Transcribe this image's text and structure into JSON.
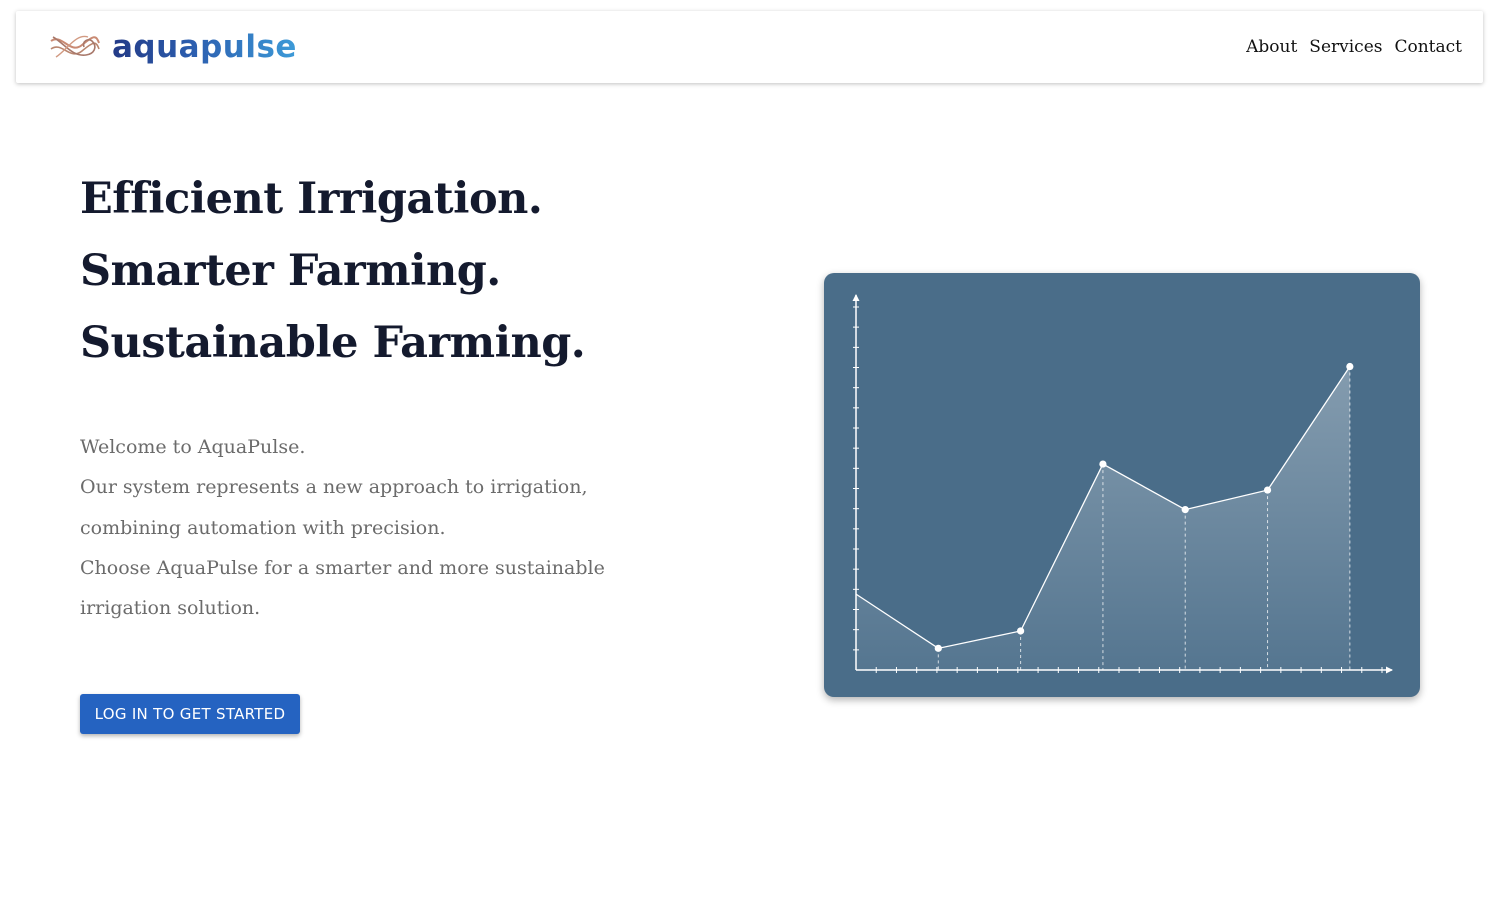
{
  "brand": {
    "name": "aquapulse",
    "icon": "wave-logo-icon",
    "gradient_start": "#233a86",
    "gradient_end": "#3d9bd8",
    "icon_color": "#c98a73"
  },
  "nav": {
    "items": [
      {
        "label": "About"
      },
      {
        "label": "Services"
      },
      {
        "label": "Contact"
      }
    ]
  },
  "hero": {
    "title_lines": [
      "Efficient Irrigation.",
      "Smarter Farming.",
      "Sustainable Farming."
    ],
    "intro": "Welcome to AquaPulse.",
    "body_1": "Our system represents a new approach to irrigation, combining automation with precision.",
    "body_2": "Choose AquaPulse for a smarter and more sustainable irrigation solution.",
    "cta_label": "LOG IN TO GET STARTED",
    "cta_color": "#2563c1"
  },
  "chart_data": {
    "type": "area",
    "title": "",
    "xlabel": "",
    "ylabel": "",
    "background": "#4a6d89",
    "line_color": "#ffffff",
    "x": [
      0,
      1,
      2,
      3,
      4,
      5,
      6
    ],
    "values": [
      3.5,
      1.0,
      1.8,
      9.5,
      7.4,
      8.3,
      14.0
    ],
    "xlim": [
      0,
      6.5
    ],
    "ylim": [
      0,
      17.3
    ],
    "x_ticks": 27,
    "y_ticks": 19,
    "grid": false,
    "markers_on_points": [
      1,
      2,
      3,
      4,
      5,
      6
    ],
    "dashed_droplines": true
  }
}
